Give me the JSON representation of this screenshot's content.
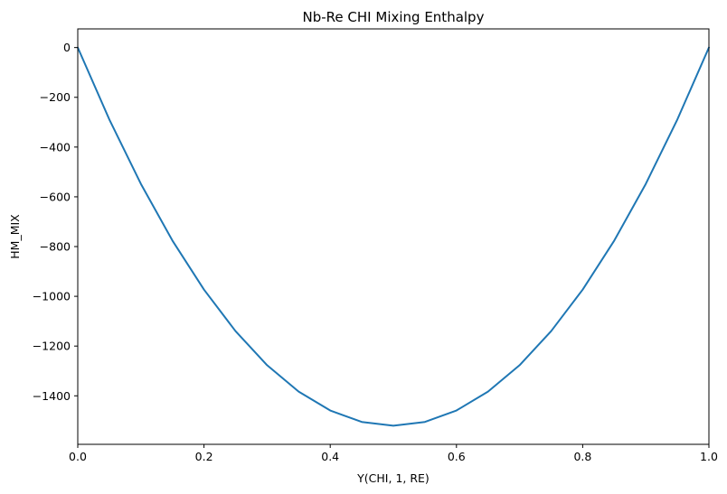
{
  "chart_data": {
    "type": "line",
    "title": "Nb-Re CHI Mixing Enthalpy",
    "xlabel": "Y(CHI, 1, RE)",
    "ylabel": "HM_MIX",
    "xlim": [
      0,
      1
    ],
    "ylim": [
      -1595,
      75
    ],
    "grid": false,
    "x_ticks": [
      0,
      0.2,
      0.4,
      0.6,
      0.8,
      1
    ],
    "x_tick_labels": [
      "0.0",
      "0.2",
      "0.4",
      "0.6",
      "0.8",
      "1.0"
    ],
    "y_ticks": [
      0,
      -200,
      -400,
      -600,
      -800,
      -1000,
      -1200,
      -1400
    ],
    "y_tick_labels": [
      "0",
      "−200",
      "−400",
      "−600",
      "−800",
      "−1000",
      "−1200",
      "−1400"
    ],
    "series": [
      {
        "color": "#1f77b4",
        "x": [
          0,
          0.05,
          0.1,
          0.15,
          0.2,
          0.25,
          0.3,
          0.35,
          0.4,
          0.45,
          0.5,
          0.55,
          0.6,
          0.65,
          0.7,
          0.75,
          0.8,
          0.85,
          0.9,
          0.95,
          1
        ],
        "y": [
          0,
          -289,
          -548,
          -776,
          -973,
          -1140,
          -1277,
          -1383,
          -1459,
          -1505,
          -1520,
          -1505,
          -1459,
          -1383,
          -1277,
          -1140,
          -973,
          -776,
          -548,
          -289,
          0
        ]
      }
    ]
  }
}
